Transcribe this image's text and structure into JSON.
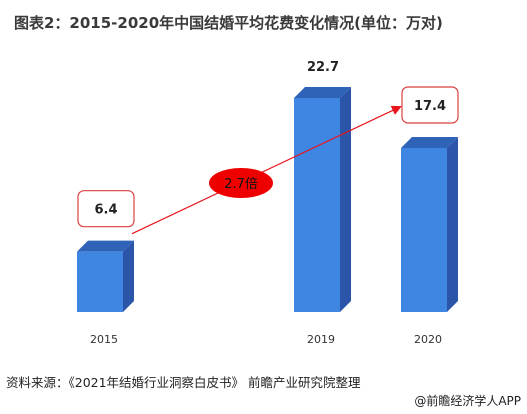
{
  "title": "图表2：2015-2020年中国结婚平均花费变化情况(单位：万对)",
  "source": "资料来源：《2021年结婚行业洞察白皮书》 前瞻产业研究院整理",
  "brand": "@前瞻经济学人APP",
  "annotation": "2.7倍",
  "colors": {
    "bar_front": "#3f86e2",
    "bar_side": "#2a55a8",
    "bar_top": "#2f63b8",
    "highlight_box": "#d9413f",
    "arrow": "#e8141c",
    "ellipse": "#ee0000"
  },
  "chart_data": {
    "type": "bar",
    "categories": [
      "2015",
      "2019",
      "2020"
    ],
    "values": [
      6.4,
      22.7,
      17.4
    ],
    "value_labels": [
      "6.4",
      "22.7",
      "17.4"
    ],
    "highlighted_labels": [
      "2015",
      "2020"
    ],
    "title": "图表2：2015-2020年中国结婚平均花费变化情况(单位：万对)",
    "xlabel": "",
    "ylabel": "",
    "ylim": [
      0,
      22.7
    ],
    "grid": false,
    "legend": "none"
  }
}
